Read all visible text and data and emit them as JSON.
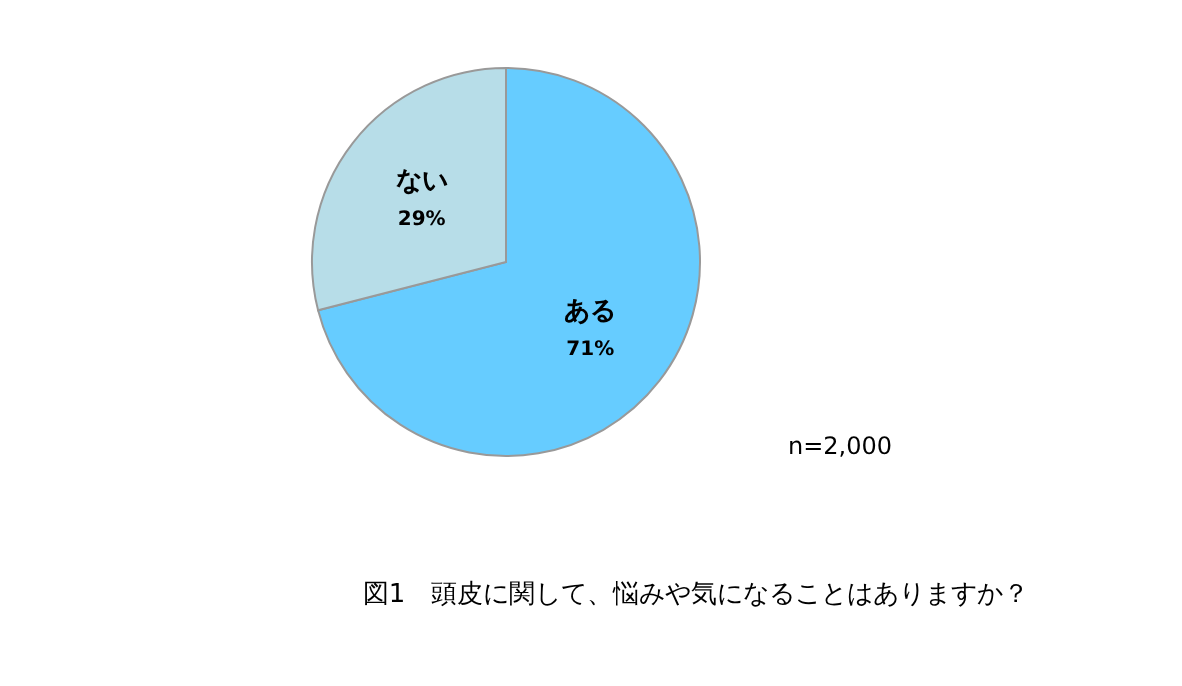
{
  "chart_data": {
    "type": "pie",
    "title": "図1　頭皮に関して、悩みや気になることはありますか？",
    "categories": [
      "ある",
      "ない"
    ],
    "values": [
      71,
      29
    ],
    "colors": [
      "#66ccff",
      "#b7dde8"
    ],
    "value_labels": [
      "71%",
      "29%"
    ],
    "legend": false,
    "annotations": [
      "n=2,000"
    ]
  }
}
